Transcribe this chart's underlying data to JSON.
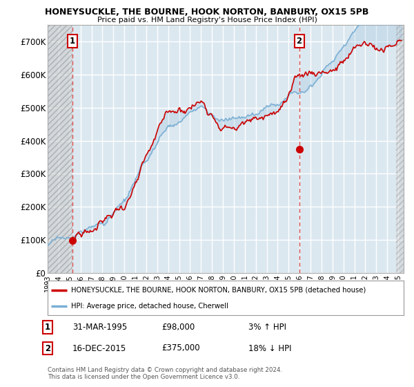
{
  "title": "HONEYSUCKLE, THE BOURNE, HOOK NORTON, BANBURY, OX15 5PB",
  "subtitle": "Price paid vs. HM Land Registry's House Price Index (HPI)",
  "legend_line1": "HONEYSUCKLE, THE BOURNE, HOOK NORTON, BANBURY, OX15 5PB (detached house)",
  "legend_line2": "HPI: Average price, detached house, Cherwell",
  "annotation1_label": "1",
  "annotation1_date": "31-MAR-1995",
  "annotation1_price": "£98,000",
  "annotation1_hpi": "3% ↑ HPI",
  "annotation2_label": "2",
  "annotation2_date": "16-DEC-2015",
  "annotation2_price": "£375,000",
  "annotation2_hpi": "18% ↓ HPI",
  "footer": "Contains HM Land Registry data © Crown copyright and database right 2024.\nThis data is licensed under the Open Government Licence v3.0.",
  "ylim": [
    0,
    750000
  ],
  "yticks": [
    0,
    100000,
    200000,
    300000,
    400000,
    500000,
    600000,
    700000
  ],
  "ytick_labels": [
    "£0",
    "£100K",
    "£200K",
    "£300K",
    "£400K",
    "£500K",
    "£600K",
    "£700K"
  ],
  "plot_bg_color": "#dce8f0",
  "grid_color": "#ffffff",
  "red_line_color": "#cc0000",
  "blue_line_color": "#7aafd4",
  "vline_color": "#e05050",
  "marker_color": "#cc0000",
  "anno_box_edgecolor": "#cc0000",
  "sale1_x": 1995.25,
  "sale1_y": 98000,
  "sale2_x": 2015.96,
  "sale2_y": 375000,
  "xmin": 1993.0,
  "xmax": 2025.5
}
